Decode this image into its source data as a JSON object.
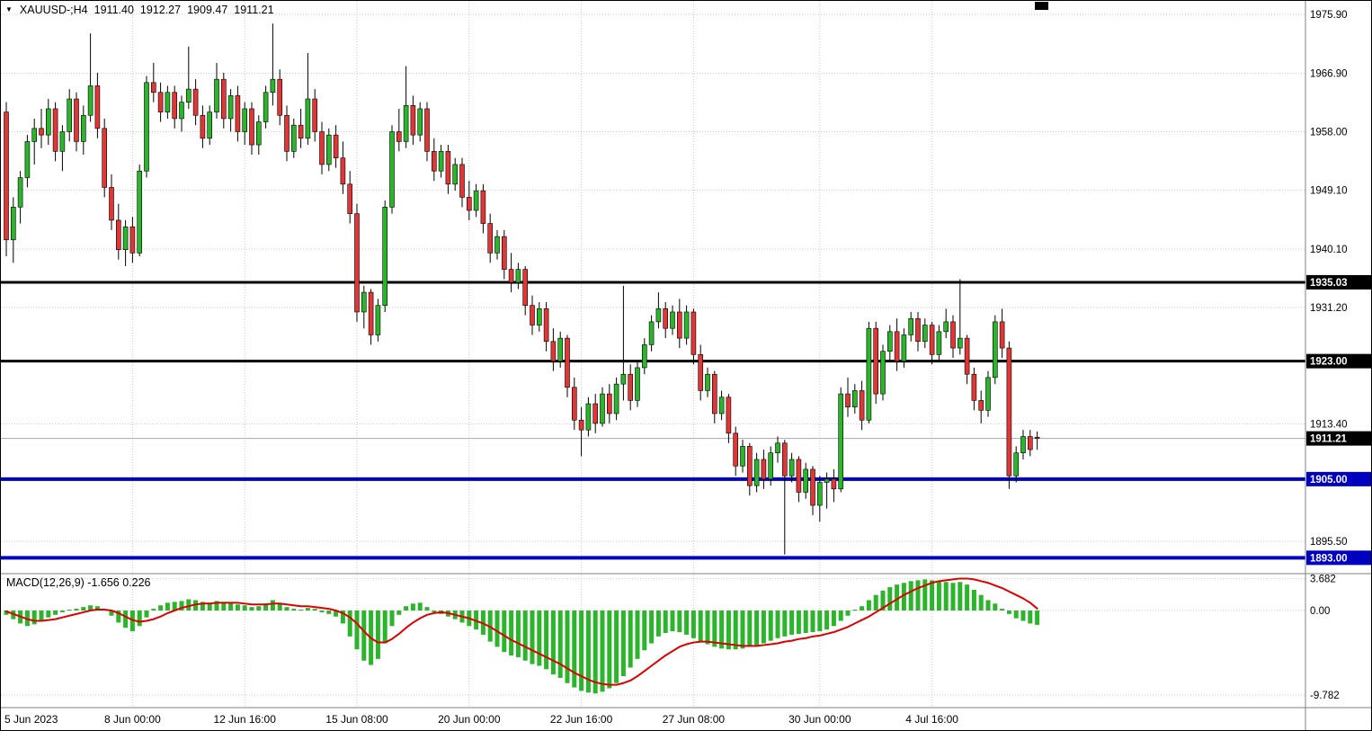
{
  "header": {
    "collapse_icon": "▼",
    "symbol": "XAUUSD-;H4",
    "open": "1911.40",
    "high": "1912.27",
    "low": "1909.47",
    "close": "1911.21"
  },
  "macd_label": "MACD(12,26,9) -1.656 0.226",
  "colors": {
    "bull": "#2AB52A",
    "bear": "#E03636",
    "wick": "#000000",
    "grid": "#C6C6C6",
    "macd_hist": "#2AB52A",
    "macd_signal": "#DD0000",
    "level_black": "#000000",
    "level_blue": "#0000C0",
    "current_price_line": "#A8A8A8",
    "separator": "#808080",
    "axis_text": "#000000",
    "badge_text": "#FFFFFF",
    "background": "#FFFFFF"
  },
  "chart_data": {
    "type": "candlestick",
    "symbol": "XAUUSD-",
    "timeframe": "H4",
    "ohlc_display": {
      "open": 1911.4,
      "high": 1912.27,
      "low": 1909.47,
      "close": 1911.21
    },
    "price_axis_ticks": [
      {
        "value": 1975.9,
        "label": "1975.90"
      },
      {
        "value": 1966.9,
        "label": "1966.90"
      },
      {
        "value": 1958.0,
        "label": "1958.00"
      },
      {
        "value": 1949.1,
        "label": "1949.10"
      },
      {
        "value": 1940.1,
        "label": "1940.10"
      },
      {
        "value": 1931.2,
        "label": "1931.20"
      },
      {
        "value": 1913.4,
        "label": "1913.40"
      },
      {
        "value": 1895.5,
        "label": "1895.50"
      }
    ],
    "time_axis_labels": [
      {
        "bar": 0,
        "text": "5 Jun 2023",
        "align": "left"
      },
      {
        "bar": 18,
        "text": "8 Jun 00:00"
      },
      {
        "bar": 34,
        "text": "12 Jun 16:00"
      },
      {
        "bar": 50,
        "text": "15 Jun 08:00"
      },
      {
        "bar": 66,
        "text": "20 Jun 00:00"
      },
      {
        "bar": 82,
        "text": "22 Jun 16:00"
      },
      {
        "bar": 98,
        "text": "27 Jun 08:00"
      },
      {
        "bar": 116,
        "text": "30 Jun 00:00"
      },
      {
        "bar": 132,
        "text": "4 Jul 16:00"
      }
    ],
    "horizontal_levels": [
      {
        "value": 1935.03,
        "label": "1935.03",
        "color": "#000000",
        "badge_bg": "#000000",
        "width": 3
      },
      {
        "value": 1923.0,
        "label": "1923.00",
        "color": "#000000",
        "badge_bg": "#000000",
        "width": 3
      },
      {
        "value": 1905.0,
        "label": "1905.00",
        "color": "#0000C0",
        "badge_bg": "#0000C0",
        "width": 4
      },
      {
        "value": 1893.0,
        "label": "1893.00",
        "color": "#0000C0",
        "badge_bg": "#0000C0",
        "width": 4
      }
    ],
    "current_price": {
      "value": 1911.21,
      "label": "1911.21",
      "badge_bg": "#000000"
    },
    "price_range": [
      1893.0,
      1975.9
    ],
    "candles": [
      [
        1961.0,
        1962.5,
        1939.0,
        1941.5
      ],
      [
        1941.5,
        1948.0,
        1938.0,
        1946.5
      ],
      [
        1946.5,
        1952.0,
        1944.0,
        1951.0
      ],
      [
        1951.0,
        1957.5,
        1949.5,
        1956.5
      ],
      [
        1956.5,
        1960.0,
        1953.0,
        1958.5
      ],
      [
        1958.5,
        1961.5,
        1955.5,
        1957.5
      ],
      [
        1957.5,
        1963.0,
        1956.0,
        1961.5
      ],
      [
        1961.5,
        1962.5,
        1953.5,
        1955.0
      ],
      [
        1955.0,
        1959.0,
        1952.0,
        1958.0
      ],
      [
        1958.0,
        1964.5,
        1956.5,
        1963.0
      ],
      [
        1963.0,
        1964.0,
        1955.0,
        1956.5
      ],
      [
        1956.5,
        1962.0,
        1954.5,
        1960.5
      ],
      [
        1960.5,
        1973.0,
        1959.5,
        1965.0
      ],
      [
        1965.0,
        1967.0,
        1957.0,
        1958.5
      ],
      [
        1958.5,
        1960.0,
        1948.0,
        1949.5
      ],
      [
        1949.5,
        1951.5,
        1943.0,
        1944.5
      ],
      [
        1944.5,
        1947.0,
        1938.5,
        1940.0
      ],
      [
        1940.0,
        1944.5,
        1937.5,
        1943.5
      ],
      [
        1943.5,
        1945.0,
        1938.0,
        1939.5
      ],
      [
        1939.5,
        1953.0,
        1939.0,
        1952.0
      ],
      [
        1952.0,
        1966.5,
        1951.0,
        1965.5
      ],
      [
        1965.5,
        1968.5,
        1962.5,
        1964.0
      ],
      [
        1964.0,
        1965.5,
        1959.5,
        1961.0
      ],
      [
        1961.0,
        1965.0,
        1960.0,
        1964.0
      ],
      [
        1964.0,
        1965.0,
        1958.5,
        1960.0
      ],
      [
        1960.0,
        1963.5,
        1958.0,
        1962.5
      ],
      [
        1962.5,
        1971.0,
        1961.5,
        1964.5
      ],
      [
        1964.5,
        1966.0,
        1959.0,
        1960.5
      ],
      [
        1960.5,
        1962.0,
        1955.5,
        1957.0
      ],
      [
        1957.0,
        1962.0,
        1956.0,
        1961.0
      ],
      [
        1961.0,
        1968.5,
        1960.0,
        1966.0
      ],
      [
        1966.0,
        1967.0,
        1958.5,
        1960.0
      ],
      [
        1960.0,
        1964.5,
        1958.0,
        1963.5
      ],
      [
        1963.5,
        1965.0,
        1956.5,
        1958.0
      ],
      [
        1958.0,
        1962.5,
        1956.0,
        1961.5
      ],
      [
        1961.5,
        1962.5,
        1954.5,
        1956.0
      ],
      [
        1956.0,
        1960.5,
        1954.5,
        1959.5
      ],
      [
        1959.5,
        1965.0,
        1958.5,
        1964.0
      ],
      [
        1964.0,
        1974.5,
        1962.0,
        1966.0
      ],
      [
        1966.0,
        1967.5,
        1959.0,
        1960.5
      ],
      [
        1960.5,
        1962.0,
        1953.5,
        1955.0
      ],
      [
        1955.0,
        1960.0,
        1954.0,
        1959.0
      ],
      [
        1959.0,
        1961.5,
        1955.5,
        1957.0
      ],
      [
        1957.0,
        1970.0,
        1956.0,
        1963.0
      ],
      [
        1963.0,
        1964.5,
        1956.5,
        1958.0
      ],
      [
        1958.0,
        1959.5,
        1951.5,
        1953.0
      ],
      [
        1953.0,
        1958.5,
        1952.0,
        1957.5
      ],
      [
        1957.5,
        1959.0,
        1952.5,
        1954.0
      ],
      [
        1954.0,
        1956.5,
        1948.5,
        1950.0
      ],
      [
        1950.0,
        1952.0,
        1944.0,
        1945.5
      ],
      [
        1945.5,
        1947.0,
        1929.0,
        1930.5
      ],
      [
        1930.5,
        1934.5,
        1928.0,
        1933.5
      ],
      [
        1933.5,
        1934.0,
        1925.5,
        1927.0
      ],
      [
        1927.0,
        1932.5,
        1926.0,
        1931.5
      ],
      [
        1931.5,
        1947.5,
        1930.5,
        1946.5
      ],
      [
        1946.5,
        1959.0,
        1945.5,
        1958.0
      ],
      [
        1958.0,
        1961.5,
        1955.0,
        1956.5
      ],
      [
        1956.5,
        1968.0,
        1955.5,
        1962.0
      ],
      [
        1962.0,
        1963.5,
        1956.0,
        1957.5
      ],
      [
        1957.5,
        1962.5,
        1956.5,
        1961.5
      ],
      [
        1961.5,
        1962.5,
        1953.5,
        1955.0
      ],
      [
        1955.0,
        1957.0,
        1950.5,
        1952.0
      ],
      [
        1952.0,
        1956.0,
        1951.0,
        1955.0
      ],
      [
        1955.0,
        1956.0,
        1948.5,
        1950.0
      ],
      [
        1950.0,
        1954.0,
        1949.0,
        1953.0
      ],
      [
        1953.0,
        1954.0,
        1946.5,
        1948.0
      ],
      [
        1948.0,
        1950.5,
        1944.5,
        1946.0
      ],
      [
        1946.0,
        1950.0,
        1945.0,
        1949.0
      ],
      [
        1949.0,
        1950.0,
        1942.5,
        1944.0
      ],
      [
        1944.0,
        1945.5,
        1938.0,
        1939.5
      ],
      [
        1939.5,
        1943.0,
        1938.5,
        1942.0
      ],
      [
        1942.0,
        1943.0,
        1935.5,
        1937.0
      ],
      [
        1937.0,
        1939.5,
        1933.5,
        1935.0
      ],
      [
        1935.0,
        1938.0,
        1934.0,
        1937.0
      ],
      [
        1937.0,
        1937.5,
        1930.0,
        1931.5
      ],
      [
        1931.5,
        1933.0,
        1927.0,
        1928.5
      ],
      [
        1928.5,
        1932.0,
        1927.5,
        1931.0
      ],
      [
        1931.0,
        1932.0,
        1924.5,
        1926.0
      ],
      [
        1926.0,
        1928.0,
        1921.5,
        1923.0
      ],
      [
        1923.0,
        1927.5,
        1922.0,
        1926.5
      ],
      [
        1926.5,
        1927.0,
        1917.5,
        1919.0
      ],
      [
        1919.0,
        1920.5,
        1912.5,
        1914.0
      ],
      [
        1914.0,
        1916.0,
        1908.5,
        1912.5
      ],
      [
        1912.5,
        1917.5,
        1911.5,
        1916.5
      ],
      [
        1916.5,
        1918.0,
        1912.0,
        1913.5
      ],
      [
        1913.5,
        1919.0,
        1913.0,
        1918.0
      ],
      [
        1918.0,
        1919.5,
        1913.5,
        1915.0
      ],
      [
        1915.0,
        1920.5,
        1914.0,
        1919.5
      ],
      [
        1919.5,
        1934.5,
        1917.0,
        1921.0
      ],
      [
        1921.0,
        1922.5,
        1915.5,
        1917.0
      ],
      [
        1917.0,
        1923.0,
        1916.0,
        1922.0
      ],
      [
        1922.0,
        1926.5,
        1921.0,
        1925.5
      ],
      [
        1925.5,
        1930.0,
        1924.5,
        1929.0
      ],
      [
        1929.0,
        1933.5,
        1928.0,
        1931.0
      ],
      [
        1931.0,
        1932.0,
        1926.5,
        1928.0
      ],
      [
        1928.0,
        1931.5,
        1927.0,
        1930.5
      ],
      [
        1930.5,
        1932.5,
        1925.0,
        1926.5
      ],
      [
        1926.5,
        1931.5,
        1925.5,
        1930.5
      ],
      [
        1930.5,
        1931.0,
        1922.5,
        1924.0
      ],
      [
        1924.0,
        1925.5,
        1917.0,
        1918.5
      ],
      [
        1918.5,
        1922.0,
        1917.5,
        1921.0
      ],
      [
        1921.0,
        1921.5,
        1913.5,
        1915.0
      ],
      [
        1915.0,
        1918.5,
        1914.0,
        1917.5
      ],
      [
        1917.5,
        1918.0,
        1910.5,
        1912.0
      ],
      [
        1912.0,
        1913.0,
        1905.5,
        1907.0
      ],
      [
        1907.0,
        1911.0,
        1906.0,
        1910.0
      ],
      [
        1910.0,
        1910.5,
        1902.5,
        1904.0
      ],
      [
        1904.0,
        1909.0,
        1903.0,
        1908.0
      ],
      [
        1908.0,
        1909.5,
        1903.5,
        1905.0
      ],
      [
        1905.0,
        1910.0,
        1904.0,
        1909.0
      ],
      [
        1909.0,
        1911.5,
        1907.5,
        1910.5
      ],
      [
        1910.5,
        1911.0,
        1893.5,
        1905.5
      ],
      [
        1905.5,
        1909.0,
        1904.5,
        1908.0
      ],
      [
        1908.0,
        1908.5,
        1901.5,
        1903.0
      ],
      [
        1903.0,
        1907.5,
        1902.0,
        1906.5
      ],
      [
        1906.5,
        1907.0,
        1899.5,
        1901.0
      ],
      [
        1901.0,
        1905.5,
        1898.5,
        1904.5
      ],
      [
        1904.5,
        1906.0,
        1900.5,
        1905.0
      ],
      [
        1905.0,
        1906.5,
        1901.5,
        1903.5
      ],
      [
        1903.5,
        1919.0,
        1903.0,
        1918.0
      ],
      [
        1918.0,
        1920.5,
        1914.5,
        1916.0
      ],
      [
        1916.0,
        1919.5,
        1915.0,
        1918.5
      ],
      [
        1918.5,
        1920.0,
        1912.5,
        1914.0
      ],
      [
        1914.0,
        1929.0,
        1913.5,
        1928.0
      ],
      [
        1928.0,
        1929.0,
        1916.5,
        1918.0
      ],
      [
        1918.0,
        1925.5,
        1917.0,
        1924.5
      ],
      [
        1924.5,
        1928.5,
        1923.0,
        1927.5
      ],
      [
        1927.5,
        1929.5,
        1921.5,
        1923.0
      ],
      [
        1923.0,
        1928.0,
        1922.0,
        1927.0
      ],
      [
        1927.0,
        1930.5,
        1926.0,
        1929.5
      ],
      [
        1929.5,
        1930.5,
        1924.5,
        1926.0
      ],
      [
        1926.0,
        1929.5,
        1925.0,
        1928.5
      ],
      [
        1928.5,
        1929.0,
        1922.5,
        1924.0
      ],
      [
        1924.0,
        1928.5,
        1923.0,
        1927.5
      ],
      [
        1927.5,
        1931.0,
        1926.5,
        1929.0
      ],
      [
        1929.0,
        1930.0,
        1923.5,
        1925.0
      ],
      [
        1925.0,
        1935.5,
        1924.0,
        1926.5
      ],
      [
        1926.5,
        1927.0,
        1919.5,
        1921.0
      ],
      [
        1921.0,
        1922.0,
        1915.5,
        1917.0
      ],
      [
        1917.0,
        1918.5,
        1913.5,
        1915.5
      ],
      [
        1915.5,
        1921.5,
        1914.5,
        1920.5
      ],
      [
        1920.5,
        1930.0,
        1919.5,
        1929.0
      ],
      [
        1929.0,
        1931.0,
        1923.5,
        1925.0
      ],
      [
        1925.0,
        1926.0,
        1903.5,
        1905.5
      ],
      [
        1905.5,
        1910.0,
        1904.5,
        1909.0
      ],
      [
        1909.0,
        1912.5,
        1908.0,
        1911.5
      ],
      [
        1911.5,
        1912.5,
        1908.5,
        1909.5
      ],
      [
        1911.4,
        1912.27,
        1909.47,
        1911.21
      ]
    ],
    "macd": {
      "params": "12,26,9",
      "values_display": "-1.656 0.226",
      "axis_ticks": [
        {
          "value": 3.682,
          "label": "3.682"
        },
        {
          "value": 0,
          "label": "0.00"
        },
        {
          "value": -9.782,
          "label": "-9.782"
        }
      ],
      "range": [
        -9.782,
        3.682
      ],
      "histogram": [
        -0.5,
        -1.0,
        -1.5,
        -1.8,
        -1.6,
        -1.2,
        -0.8,
        -0.5,
        -0.2,
        0.1,
        0.2,
        0.4,
        0.6,
        0.5,
        0.1,
        -0.6,
        -1.4,
        -2.0,
        -2.4,
        -1.8,
        -0.8,
        0.2,
        0.6,
        0.9,
        1.0,
        1.1,
        1.3,
        1.2,
        1.0,
        0.9,
        1.1,
        1.0,
        0.9,
        0.7,
        0.6,
        0.4,
        0.5,
        0.8,
        1.2,
        0.9,
        0.4,
        0.2,
        0.1,
        0.3,
        0.2,
        -0.2,
        -0.4,
        -0.7,
        -1.5,
        -3.0,
        -4.5,
        -5.8,
        -6.3,
        -5.6,
        -3.8,
        -1.8,
        -0.5,
        0.5,
        0.8,
        0.9,
        0.4,
        -0.2,
        -0.4,
        -0.7,
        -1.0,
        -1.4,
        -1.8,
        -2.2,
        -2.8,
        -3.6,
        -4.2,
        -4.8,
        -5.2,
        -5.4,
        -5.8,
        -6.2,
        -6.4,
        -6.8,
        -7.4,
        -7.8,
        -8.4,
        -8.9,
        -9.3,
        -9.5,
        -9.6,
        -9.4,
        -9.0,
        -8.4,
        -7.6,
        -6.6,
        -5.6,
        -4.6,
        -3.8,
        -3.0,
        -2.6,
        -2.4,
        -2.5,
        -2.8,
        -3.2,
        -3.6,
        -3.9,
        -4.2,
        -4.4,
        -4.5,
        -4.5,
        -4.4,
        -4.2,
        -4.0,
        -3.8,
        -3.5,
        -3.2,
        -3.0,
        -2.8,
        -2.7,
        -2.6,
        -2.5,
        -2.4,
        -2.2,
        -1.8,
        -1.2,
        -0.6,
        0.0,
        0.5,
        1.2,
        1.8,
        2.3,
        2.7,
        3.0,
        3.2,
        3.4,
        3.5,
        3.6,
        3.5,
        3.4,
        3.3,
        3.2,
        3.3,
        3.0,
        2.4,
        1.8,
        1.2,
        0.8,
        0.2,
        -0.4,
        -0.9,
        -1.2,
        -1.5,
        -1.656
      ],
      "signal": [
        -0.1,
        -0.4,
        -0.7,
        -1.0,
        -1.2,
        -1.2,
        -1.1,
        -1.0,
        -0.8,
        -0.6,
        -0.4,
        -0.2,
        0.0,
        0.1,
        0.1,
        0.0,
        -0.3,
        -0.7,
        -1.1,
        -1.3,
        -1.2,
        -1.0,
        -0.7,
        -0.3,
        0.0,
        0.3,
        0.5,
        0.7,
        0.8,
        0.8,
        0.9,
        0.9,
        0.9,
        0.9,
        0.8,
        0.7,
        0.7,
        0.7,
        0.8,
        0.8,
        0.7,
        0.6,
        0.5,
        0.5,
        0.4,
        0.3,
        0.2,
        0.0,
        -0.3,
        -0.8,
        -1.5,
        -2.4,
        -3.2,
        -3.7,
        -3.7,
        -3.3,
        -2.7,
        -2.0,
        -1.4,
        -0.9,
        -0.5,
        -0.3,
        -0.2,
        -0.3,
        -0.5,
        -0.7,
        -0.9,
        -1.2,
        -1.5,
        -1.9,
        -2.4,
        -2.9,
        -3.4,
        -3.8,
        -4.2,
        -4.6,
        -5.0,
        -5.4,
        -5.8,
        -6.2,
        -6.7,
        -7.2,
        -7.6,
        -8.0,
        -8.3,
        -8.5,
        -8.6,
        -8.6,
        -8.4,
        -8.1,
        -7.6,
        -7.0,
        -6.4,
        -5.8,
        -5.2,
        -4.7,
        -4.2,
        -3.9,
        -3.7,
        -3.6,
        -3.6,
        -3.7,
        -3.8,
        -3.9,
        -4.0,
        -4.1,
        -4.1,
        -4.1,
        -4.0,
        -3.9,
        -3.8,
        -3.6,
        -3.5,
        -3.3,
        -3.2,
        -3.0,
        -2.9,
        -2.7,
        -2.5,
        -2.2,
        -1.9,
        -1.5,
        -1.1,
        -0.7,
        -0.2,
        0.3,
        0.8,
        1.3,
        1.8,
        2.2,
        2.6,
        2.9,
        3.2,
        3.4,
        3.5,
        3.6,
        3.7,
        3.7,
        3.6,
        3.4,
        3.2,
        2.9,
        2.6,
        2.2,
        1.8,
        1.4,
        0.9,
        0.226
      ]
    }
  }
}
